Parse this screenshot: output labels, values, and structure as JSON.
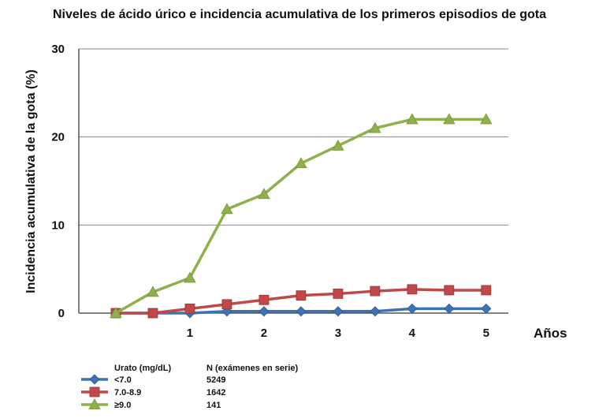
{
  "chart_data": {
    "type": "line",
    "title": "Niveles de ácido úrico e incidencia acumulativa de los primeros episodios de gota",
    "xlabel": "Años",
    "ylabel": "Incidencia acumulativa de la gota (%)",
    "x": [
      0,
      0.5,
      1,
      1.5,
      2,
      2.5,
      3,
      3.5,
      4,
      4.5,
      5
    ],
    "xticks": [
      1,
      2,
      3,
      4,
      5
    ],
    "xlim": [
      -0.5,
      5.3
    ],
    "yticks": [
      0,
      10,
      20,
      30
    ],
    "ylim": [
      0,
      30
    ],
    "grid": true,
    "legend": {
      "position": "bottom-left",
      "header_label": "Urato (mg/dL)",
      "header_n": "N (exámenes en serie)"
    },
    "series": [
      {
        "name": "<7.0",
        "n": "5249",
        "color": "#3f72b4",
        "marker": "diamond",
        "values": [
          0,
          0,
          0,
          0.2,
          0.2,
          0.2,
          0.2,
          0.2,
          0.5,
          0.5,
          0.5
        ]
      },
      {
        "name": "7.0-8.9",
        "n": "1642",
        "color": "#c04848",
        "marker": "square",
        "values": [
          0,
          0,
          0.5,
          1.0,
          1.5,
          2.0,
          2.2,
          2.5,
          2.7,
          2.6,
          2.6
        ]
      },
      {
        "name": "≥9.0",
        "n": "141",
        "color": "#8fb04a",
        "marker": "triangle",
        "values": [
          0,
          2.4,
          4.0,
          11.8,
          13.5,
          17.0,
          19.0,
          21.0,
          22.0,
          22.0,
          22.0
        ]
      }
    ]
  }
}
